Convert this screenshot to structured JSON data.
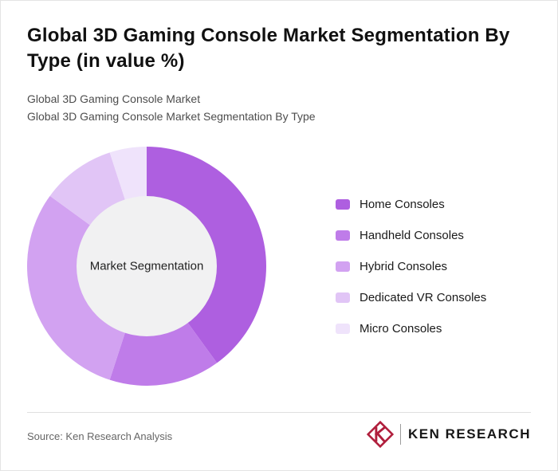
{
  "header": {
    "title": "Global 3D Gaming Console Market Segmentation By Type (in value %)",
    "subtitle_line1": "Global 3D Gaming Console Market",
    "subtitle_line2": "Global 3D Gaming Console Market Segmentation By Type"
  },
  "chart_data": {
    "type": "pie",
    "variant": "donut",
    "title": "Global 3D Gaming Console Market Segmentation By Type (in value %)",
    "center_label": "Market Segmentation",
    "labels": [
      "Home Consoles",
      "Handheld Consoles",
      "Hybrid Consoles",
      "Dedicated VR Consoles",
      "Micro Consoles"
    ],
    "values": [
      40,
      15,
      30,
      10,
      5
    ],
    "colors": [
      "#ae5fe0",
      "#bf7ce9",
      "#d2a2f1",
      "#e1c5f6",
      "#efe3fb"
    ],
    "center_fill": "#f1f1f2",
    "legend_position": "right",
    "start_angle_deg": -90,
    "direction": "clockwise"
  },
  "footer": {
    "source": "Source: Ken Research Analysis",
    "logo_text": "KEN RESEARCH",
    "logo_icon": "ken-research-k-diamond",
    "logo_accent_color": "#b01e3c"
  }
}
